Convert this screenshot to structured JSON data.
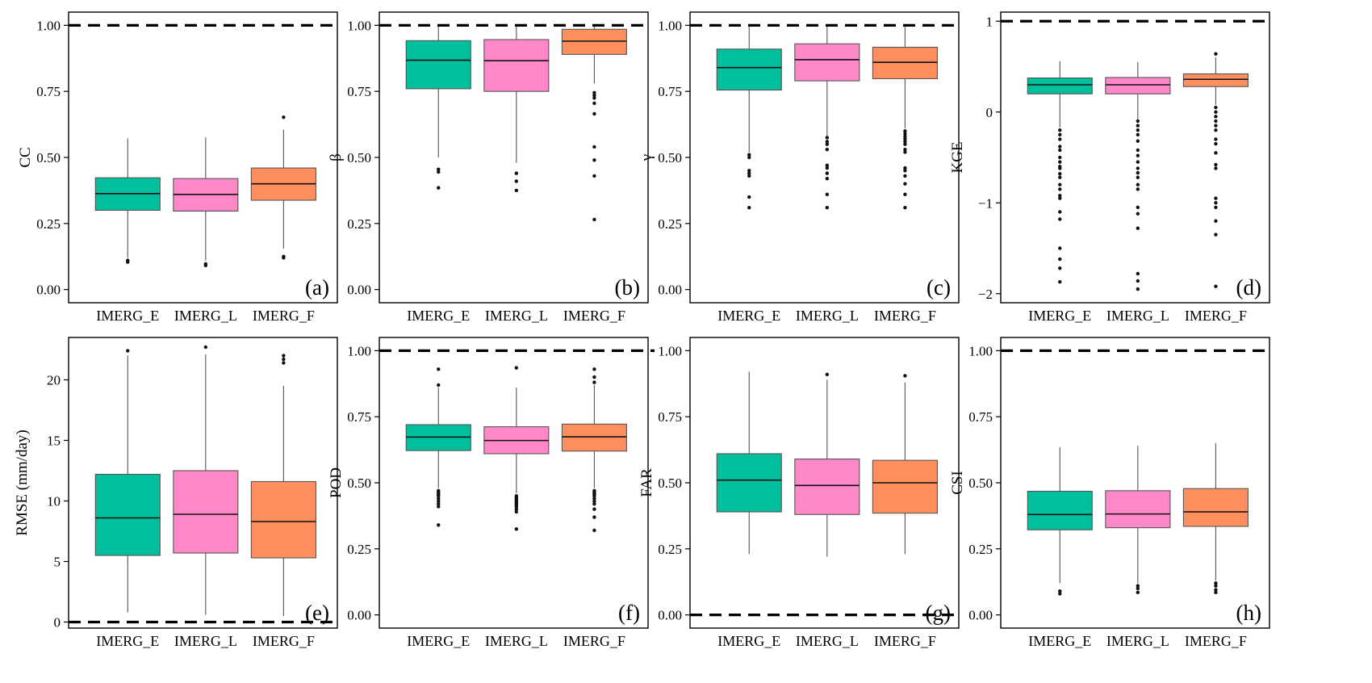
{
  "chart_data": [
    {
      "type": "box",
      "panel": "(a)",
      "ylabel": "CC",
      "ylim": [
        -0.05,
        1.05
      ],
      "yticks": [
        0,
        0.25,
        0.5,
        0.75,
        1
      ],
      "ytick_labels": [
        "0.00",
        "0.25",
        "0.50",
        "0.75",
        "1.00"
      ],
      "ref": 1.0,
      "categories": [
        "IMERG_E",
        "IMERG_L",
        "IMERG_F"
      ],
      "boxes": [
        {
          "min": 0.12,
          "q1": 0.3,
          "median": 0.363,
          "q3": 0.423,
          "max": 0.572,
          "outliers": [
            0.11,
            0.104
          ]
        },
        {
          "min": 0.11,
          "q1": 0.297,
          "median": 0.36,
          "q3": 0.42,
          "max": 0.576,
          "outliers": [
            0.097,
            0.091
          ]
        },
        {
          "min": 0.155,
          "q1": 0.338,
          "median": 0.4,
          "q3": 0.46,
          "max": 0.605,
          "outliers": [
            0.652,
            0.125,
            0.12
          ]
        }
      ]
    },
    {
      "type": "box",
      "panel": "(b)",
      "ylabel": "β",
      "ylim": [
        -0.05,
        1.05
      ],
      "yticks": [
        0,
        0.25,
        0.5,
        0.75,
        1
      ],
      "ytick_labels": [
        "0.00",
        "0.25",
        "0.50",
        "0.75",
        "1.00"
      ],
      "ref": 1.0,
      "categories": [
        "IMERG_E",
        "IMERG_L",
        "IMERG_F"
      ],
      "boxes": [
        {
          "min": 0.5,
          "q1": 0.76,
          "median": 0.868,
          "q3": 0.942,
          "max": 1.0,
          "outliers": [
            0.455,
            0.445,
            0.385
          ]
        },
        {
          "min": 0.48,
          "q1": 0.75,
          "median": 0.866,
          "q3": 0.946,
          "max": 1.0,
          "outliers": [
            0.44,
            0.41,
            0.375
          ]
        },
        {
          "min": 0.78,
          "q1": 0.89,
          "median": 0.94,
          "q3": 0.985,
          "max": 1.0,
          "outliers": [
            0.745,
            0.735,
            0.725,
            0.705,
            0.665,
            0.54,
            0.49,
            0.43,
            0.265
          ]
        }
      ]
    },
    {
      "type": "box",
      "panel": "(c)",
      "ylabel": "γ",
      "ylim": [
        -0.05,
        1.05
      ],
      "yticks": [
        0,
        0.25,
        0.5,
        0.75,
        1
      ],
      "ytick_labels": [
        "0.00",
        "0.25",
        "0.50",
        "0.75",
        "1.00"
      ],
      "ref": 1.0,
      "categories": [
        "IMERG_E",
        "IMERG_L",
        "IMERG_F"
      ],
      "boxes": [
        {
          "min": 0.52,
          "q1": 0.755,
          "median": 0.84,
          "q3": 0.91,
          "max": 1.0,
          "outliers": [
            0.51,
            0.5,
            0.45,
            0.44,
            0.43,
            0.35,
            0.31
          ]
        },
        {
          "min": 0.58,
          "q1": 0.79,
          "median": 0.87,
          "q3": 0.93,
          "max": 1.0,
          "outliers": [
            0.575,
            0.56,
            0.55,
            0.53,
            0.47,
            0.46,
            0.44,
            0.42,
            0.36,
            0.31
          ]
        },
        {
          "min": 0.61,
          "q1": 0.798,
          "median": 0.86,
          "q3": 0.917,
          "max": 1.0,
          "outliers": [
            0.6,
            0.59,
            0.58,
            0.57,
            0.56,
            0.55,
            0.53,
            0.52,
            0.46,
            0.45,
            0.43,
            0.4,
            0.36,
            0.31
          ]
        }
      ]
    },
    {
      "type": "box",
      "panel": "(d)",
      "ylabel": "KGE",
      "ylim": [
        -2.1,
        1.1
      ],
      "yticks": [
        -2,
        -1,
        0,
        1
      ],
      "ytick_labels": [
        "−2",
        "−1",
        "0",
        "1"
      ],
      "ref": 1.0,
      "categories": [
        "IMERG_E",
        "IMERG_L",
        "IMERG_F"
      ],
      "boxes": [
        {
          "min": -0.17,
          "q1": 0.2,
          "median": 0.3,
          "q3": 0.375,
          "max": 0.56,
          "outliers": [
            -0.2,
            -0.25,
            -0.3,
            -0.38,
            -0.42,
            -0.5,
            -0.55,
            -0.6,
            -0.62,
            -0.68,
            -0.72,
            -0.8,
            -0.85,
            -0.92,
            -0.95,
            -1.1,
            -1.18,
            -1.5,
            -1.62,
            -1.72,
            -1.87
          ]
        },
        {
          "min": -0.08,
          "q1": 0.2,
          "median": 0.3,
          "q3": 0.38,
          "max": 0.55,
          "outliers": [
            -0.1,
            -0.15,
            -0.2,
            -0.25,
            -0.32,
            -0.42,
            -0.48,
            -0.55,
            -0.62,
            -0.67,
            -0.72,
            -0.8,
            -0.85,
            -1.05,
            -1.12,
            -1.28,
            -1.78,
            -1.86,
            -1.95
          ]
        },
        {
          "min": 0.08,
          "q1": 0.28,
          "median": 0.36,
          "q3": 0.42,
          "max": 0.6,
          "outliers": [
            0.64,
            0.05,
            0.0,
            -0.05,
            -0.1,
            -0.15,
            -0.2,
            -0.3,
            -0.35,
            -0.45,
            -0.58,
            -0.62,
            -0.95,
            -1.0,
            -1.05,
            -1.2,
            -1.35,
            -1.92
          ]
        }
      ]
    },
    {
      "type": "box",
      "panel": "(e)",
      "ylabel": "RMSE (mm/day)",
      "ylim": [
        -0.5,
        23.5
      ],
      "yticks": [
        0,
        5,
        10,
        15,
        20
      ],
      "ytick_labels": [
        "0",
        "5",
        "10",
        "15",
        "20"
      ],
      "ref": 0,
      "categories": [
        "IMERG_E",
        "IMERG_L",
        "IMERG_F"
      ],
      "boxes": [
        {
          "min": 0.8,
          "q1": 5.5,
          "median": 8.6,
          "q3": 12.2,
          "max": 22.0,
          "outliers": [
            22.4
          ]
        },
        {
          "min": 0.6,
          "q1": 5.7,
          "median": 8.9,
          "q3": 12.5,
          "max": 22.1,
          "outliers": [
            22.7
          ]
        },
        {
          "min": 0.5,
          "q1": 5.3,
          "median": 8.3,
          "q3": 11.6,
          "max": 19.5,
          "outliers": [
            21.4,
            21.7,
            22.0
          ]
        }
      ]
    },
    {
      "type": "box",
      "panel": "(f)",
      "ylabel": "POD",
      "ylim": [
        -0.05,
        1.05
      ],
      "yticks": [
        0,
        0.25,
        0.5,
        0.75,
        1
      ],
      "ytick_labels": [
        "0.00",
        "0.25",
        "0.50",
        "0.75",
        "1.00"
      ],
      "ref": 1.0,
      "categories": [
        "IMERG_E",
        "IMERG_L",
        "IMERG_F"
      ],
      "boxes": [
        {
          "min": 0.48,
          "q1": 0.622,
          "median": 0.673,
          "q3": 0.72,
          "max": 0.86,
          "outliers": [
            0.93,
            0.87,
            0.47,
            0.465,
            0.46,
            0.455,
            0.45,
            0.44,
            0.43,
            0.42,
            0.41,
            0.34
          ]
        },
        {
          "min": 0.46,
          "q1": 0.61,
          "median": 0.66,
          "q3": 0.712,
          "max": 0.86,
          "outliers": [
            0.935,
            0.45,
            0.445,
            0.44,
            0.435,
            0.43,
            0.425,
            0.42,
            0.415,
            0.41,
            0.4,
            0.39,
            0.325
          ]
        },
        {
          "min": 0.48,
          "q1": 0.62,
          "median": 0.674,
          "q3": 0.722,
          "max": 0.87,
          "outliers": [
            0.93,
            0.9,
            0.88,
            0.47,
            0.465,
            0.46,
            0.455,
            0.45,
            0.44,
            0.43,
            0.42,
            0.4,
            0.37,
            0.32
          ]
        }
      ]
    },
    {
      "type": "box",
      "panel": "(g)",
      "ylabel": "FAR",
      "ylim": [
        -0.05,
        1.05
      ],
      "yticks": [
        0,
        0.25,
        0.5,
        0.75,
        1
      ],
      "ytick_labels": [
        "0.00",
        "0.25",
        "0.50",
        "0.75",
        "1.00"
      ],
      "ref": 0,
      "categories": [
        "IMERG_E",
        "IMERG_L",
        "IMERG_F"
      ],
      "boxes": [
        {
          "min": 0.23,
          "q1": 0.39,
          "median": 0.51,
          "q3": 0.61,
          "max": 0.92,
          "outliers": []
        },
        {
          "min": 0.22,
          "q1": 0.38,
          "median": 0.49,
          "q3": 0.59,
          "max": 0.89,
          "outliers": [
            0.91
          ]
        },
        {
          "min": 0.23,
          "q1": 0.385,
          "median": 0.5,
          "q3": 0.585,
          "max": 0.88,
          "outliers": [
            0.905
          ]
        }
      ]
    },
    {
      "type": "box",
      "panel": "(h)",
      "ylabel": "CSI",
      "ylim": [
        -0.05,
        1.05
      ],
      "yticks": [
        0,
        0.25,
        0.5,
        0.75,
        1
      ],
      "ytick_labels": [
        "0.00",
        "0.25",
        "0.50",
        "0.75",
        "1.00"
      ],
      "ref": 1.0,
      "categories": [
        "IMERG_E",
        "IMERG_L",
        "IMERG_F"
      ],
      "boxes": [
        {
          "min": 0.12,
          "q1": 0.322,
          "median": 0.38,
          "q3": 0.468,
          "max": 0.635,
          "outliers": [
            0.09,
            0.08
          ]
        },
        {
          "min": 0.12,
          "q1": 0.33,
          "median": 0.382,
          "q3": 0.47,
          "max": 0.64,
          "outliers": [
            0.11,
            0.1,
            0.085
          ]
        },
        {
          "min": 0.13,
          "q1": 0.335,
          "median": 0.39,
          "q3": 0.478,
          "max": 0.65,
          "outliers": [
            0.12,
            0.11,
            0.095,
            0.085
          ]
        }
      ]
    }
  ],
  "colors": {
    "IMERG_E": "#00BF9C",
    "IMERG_L": "#FF88C8",
    "IMERG_F": "#FF8F5F"
  }
}
